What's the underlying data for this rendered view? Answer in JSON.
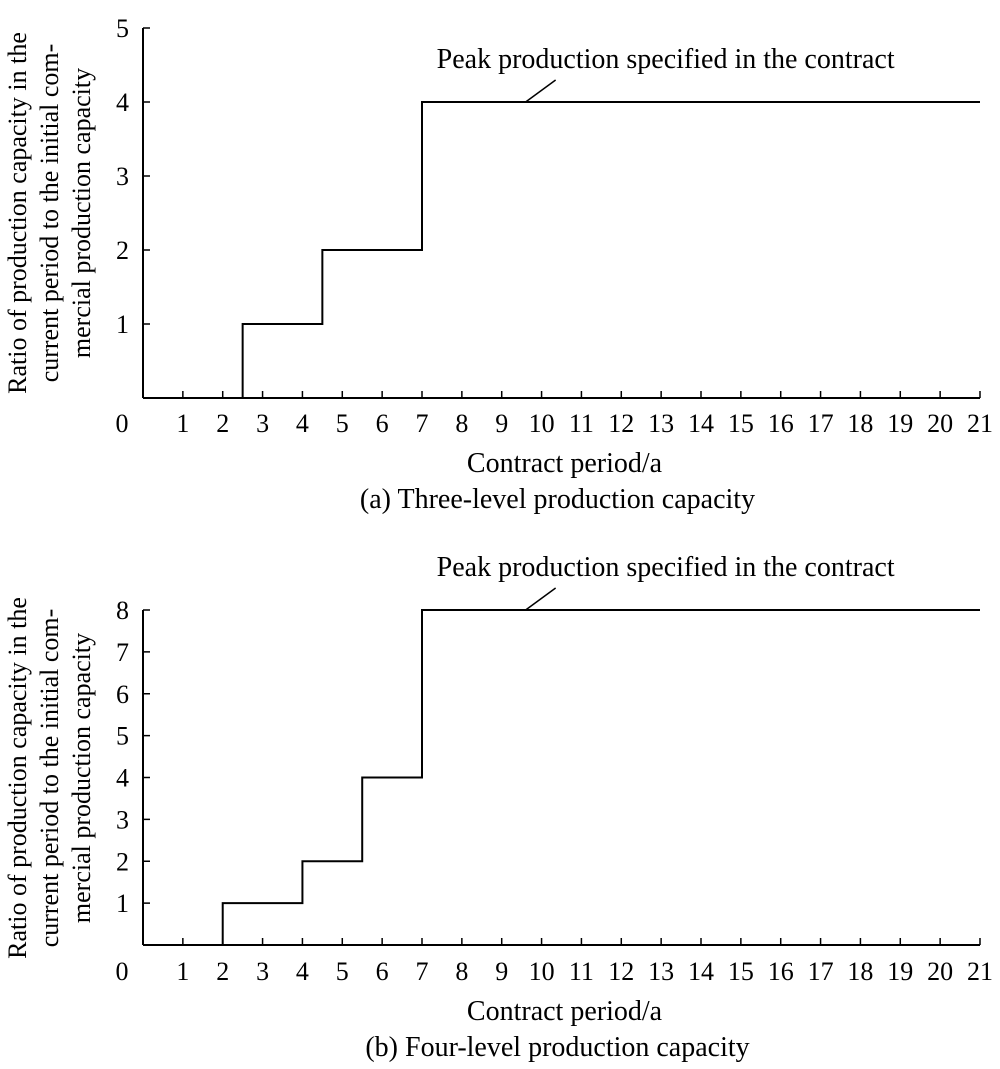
{
  "chart_data": [
    {
      "type": "line",
      "step": true,
      "caption": "(a) Three-level production capacity",
      "xlabel": "Contract period/a",
      "ylabel_lines": [
        "Ratio of production capacity in the",
        "current period to the initial com-",
        "mercial production capacity"
      ],
      "xlim": [
        0,
        21
      ],
      "ylim": [
        0,
        5
      ],
      "x_ticks": [
        "0",
        "1",
        "2",
        "3",
        "4",
        "5",
        "6",
        "7",
        "8",
        "9",
        "10",
        "11",
        "12",
        "13",
        "14",
        "15",
        "16",
        "17",
        "18",
        "19",
        "20",
        "21"
      ],
      "y_ticks": [
        "1",
        "2",
        "3",
        "4",
        "5"
      ],
      "series": [
        {
          "x": [
            2.5,
            2.5,
            4.5,
            4.5,
            7,
            7,
            21
          ],
          "y": [
            0,
            1,
            1,
            2,
            2,
            4,
            4
          ]
        }
      ],
      "annotation": {
        "text": "Peak production specified in the contract",
        "x": 9.6,
        "y": 4
      },
      "grid": false,
      "color": "#000000"
    },
    {
      "type": "line",
      "step": true,
      "caption": "(b) Four-level production capacity",
      "xlabel": "Contract period/a",
      "ylabel_lines": [
        "Ratio of production capacity in the",
        "current period to the initial com-",
        "mercial production capacity"
      ],
      "xlim": [
        0,
        21
      ],
      "ylim": [
        0,
        8
      ],
      "x_ticks": [
        "0",
        "1",
        "2",
        "3",
        "4",
        "5",
        "6",
        "7",
        "8",
        "9",
        "10",
        "11",
        "12",
        "13",
        "14",
        "15",
        "16",
        "17",
        "18",
        "19",
        "20",
        "21"
      ],
      "y_ticks": [
        "1",
        "2",
        "3",
        "4",
        "5",
        "6",
        "7",
        "8"
      ],
      "series": [
        {
          "x": [
            2,
            2,
            4,
            4,
            5.5,
            5.5,
            7,
            7,
            21
          ],
          "y": [
            0,
            1,
            1,
            2,
            2,
            4,
            4,
            8,
            8
          ]
        }
      ],
      "annotation": {
        "text": "Peak production specified in the contract",
        "x": 9.6,
        "y": 8
      },
      "grid": false,
      "color": "#000000"
    }
  ]
}
